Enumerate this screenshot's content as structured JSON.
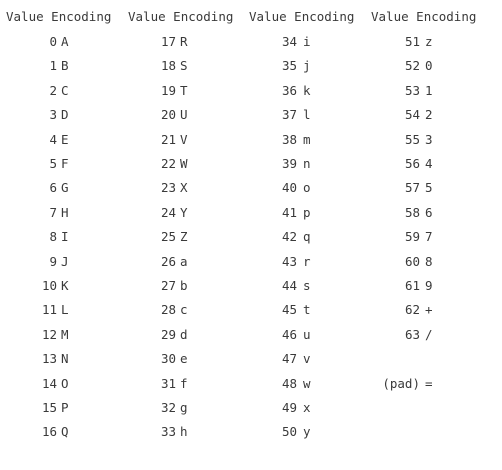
{
  "header": {
    "value_label": "Value",
    "encoding_label": "Encoding"
  },
  "columns": [
    {
      "rows": [
        {
          "value": "0",
          "encoding": "A"
        },
        {
          "value": "1",
          "encoding": "B"
        },
        {
          "value": "2",
          "encoding": "C"
        },
        {
          "value": "3",
          "encoding": "D"
        },
        {
          "value": "4",
          "encoding": "E"
        },
        {
          "value": "5",
          "encoding": "F"
        },
        {
          "value": "6",
          "encoding": "G"
        },
        {
          "value": "7",
          "encoding": "H"
        },
        {
          "value": "8",
          "encoding": "I"
        },
        {
          "value": "9",
          "encoding": "J"
        },
        {
          "value": "10",
          "encoding": "K"
        },
        {
          "value": "11",
          "encoding": "L"
        },
        {
          "value": "12",
          "encoding": "M"
        },
        {
          "value": "13",
          "encoding": "N"
        },
        {
          "value": "14",
          "encoding": "O"
        },
        {
          "value": "15",
          "encoding": "P"
        },
        {
          "value": "16",
          "encoding": "Q"
        }
      ]
    },
    {
      "rows": [
        {
          "value": "17",
          "encoding": "R"
        },
        {
          "value": "18",
          "encoding": "S"
        },
        {
          "value": "19",
          "encoding": "T"
        },
        {
          "value": "20",
          "encoding": "U"
        },
        {
          "value": "21",
          "encoding": "V"
        },
        {
          "value": "22",
          "encoding": "W"
        },
        {
          "value": "23",
          "encoding": "X"
        },
        {
          "value": "24",
          "encoding": "Y"
        },
        {
          "value": "25",
          "encoding": "Z"
        },
        {
          "value": "26",
          "encoding": "a"
        },
        {
          "value": "27",
          "encoding": "b"
        },
        {
          "value": "28",
          "encoding": "c"
        },
        {
          "value": "29",
          "encoding": "d"
        },
        {
          "value": "30",
          "encoding": "e"
        },
        {
          "value": "31",
          "encoding": "f"
        },
        {
          "value": "32",
          "encoding": "g"
        },
        {
          "value": "33",
          "encoding": "h"
        }
      ]
    },
    {
      "rows": [
        {
          "value": "34",
          "encoding": "i"
        },
        {
          "value": "35",
          "encoding": "j"
        },
        {
          "value": "36",
          "encoding": "k"
        },
        {
          "value": "37",
          "encoding": "l"
        },
        {
          "value": "38",
          "encoding": "m"
        },
        {
          "value": "39",
          "encoding": "n"
        },
        {
          "value": "40",
          "encoding": "o"
        },
        {
          "value": "41",
          "encoding": "p"
        },
        {
          "value": "42",
          "encoding": "q"
        },
        {
          "value": "43",
          "encoding": "r"
        },
        {
          "value": "44",
          "encoding": "s"
        },
        {
          "value": "45",
          "encoding": "t"
        },
        {
          "value": "46",
          "encoding": "u"
        },
        {
          "value": "47",
          "encoding": "v"
        },
        {
          "value": "48",
          "encoding": "w"
        },
        {
          "value": "49",
          "encoding": "x"
        },
        {
          "value": "50",
          "encoding": "y"
        }
      ]
    },
    {
      "rows": [
        {
          "value": "51",
          "encoding": "z"
        },
        {
          "value": "52",
          "encoding": "0"
        },
        {
          "value": "53",
          "encoding": "1"
        },
        {
          "value": "54",
          "encoding": "2"
        },
        {
          "value": "55",
          "encoding": "3"
        },
        {
          "value": "56",
          "encoding": "4"
        },
        {
          "value": "57",
          "encoding": "5"
        },
        {
          "value": "58",
          "encoding": "6"
        },
        {
          "value": "59",
          "encoding": "7"
        },
        {
          "value": "60",
          "encoding": "8"
        },
        {
          "value": "61",
          "encoding": "9"
        },
        {
          "value": "62",
          "encoding": "+"
        },
        {
          "value": "63",
          "encoding": "/"
        },
        {
          "value": "",
          "encoding": ""
        },
        {
          "value": "(pad)",
          "encoding": "="
        },
        {
          "value": "",
          "encoding": ""
        },
        {
          "value": "",
          "encoding": ""
        }
      ]
    }
  ]
}
